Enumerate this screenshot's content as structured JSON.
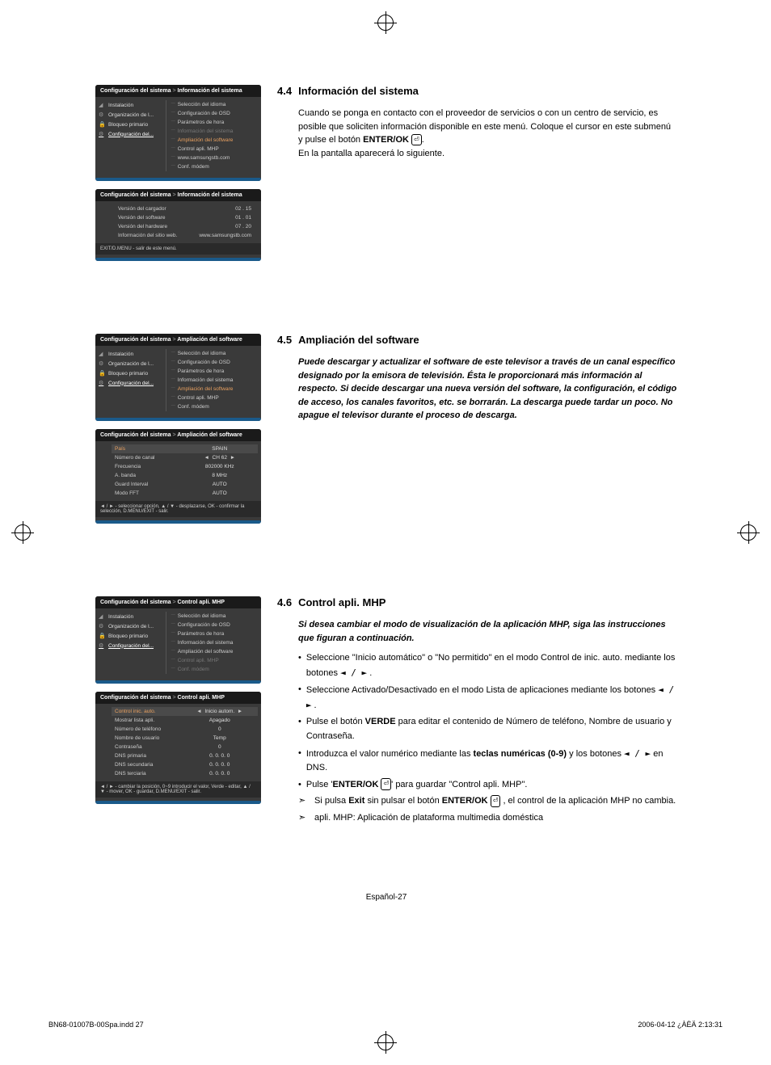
{
  "section_4_4": {
    "number": "4.4",
    "title": "Información del sistema",
    "body": "Cuando se ponga en contacto con el proveedor de servicios o con un centro de servicio, es posible que soliciten información disponible en este menú. Coloque el cursor en este submenú y pulse el botón ENTER/OK ⏎.",
    "body2": "En la pantalla aparecerá lo siguiente.",
    "menu1": {
      "breadcrumb_root": "Configuración del sistema",
      "breadcrumb_current": "Información del sistema",
      "left_items": [
        "Instalación",
        "Organización de l...",
        "Bloqueo primario",
        "Configuración del..."
      ],
      "right_items": [
        {
          "label": "Selección del idioma",
          "state": "normal"
        },
        {
          "label": "Configuración de OSD",
          "state": "normal"
        },
        {
          "label": "Parámetros de hora",
          "state": "normal"
        },
        {
          "label": "Información del sistema",
          "state": "dimmed"
        },
        {
          "label": "Ampliación del software",
          "state": "highlighted"
        },
        {
          "label": "Control apli. MHP",
          "state": "normal"
        },
        {
          "label": "www.samsungstb.com",
          "state": "normal"
        },
        {
          "label": "Conf. módem",
          "state": "normal"
        }
      ]
    },
    "menu2": {
      "breadcrumb_root": "Configuración del sistema",
      "breadcrumb_current": "Información del sistema",
      "rows": [
        {
          "label": "Versión del cargador",
          "value": "02 . 15"
        },
        {
          "label": "Versión del software",
          "value": "01 . 01"
        },
        {
          "label": "Versión del hardware",
          "value": "07 . 20"
        },
        {
          "label": "Información del sitio web.",
          "value": "www.samsungstb.com"
        }
      ],
      "footer": "EXIT/D.MENU - salir de este menú."
    }
  },
  "section_4_5": {
    "number": "4.5",
    "title": "Ampliación del software",
    "body": "Puede descargar y actualizar el software de este televisor a través de un canal específico designado por la emisora de televisión. Ésta le proporcionará más información al respecto. Si decide descargar una nueva versión del software, la configuración, el código de acceso, los canales favoritos, etc. se borrarán. La descarga puede tardar un poco. No apague el televisor durante el proceso de descarga.",
    "menu1": {
      "breadcrumb_root": "Configuración del sistema",
      "breadcrumb_current": "Ampliación del software",
      "left_items": [
        "Instalación",
        "Organización de l...",
        "Bloqueo primario",
        "Configuración del..."
      ],
      "right_items": [
        {
          "label": "Selección del idioma",
          "state": "normal"
        },
        {
          "label": "Configuración de OSD",
          "state": "normal"
        },
        {
          "label": "Parámetros de hora",
          "state": "normal"
        },
        {
          "label": "Información del sistema",
          "state": "normal"
        },
        {
          "label": "Ampliación del software",
          "state": "highlighted"
        },
        {
          "label": "Control apli. MHP",
          "state": "normal"
        },
        {
          "label": "Conf. módem",
          "state": "normal"
        }
      ]
    },
    "menu2": {
      "breadcrumb_root": "Configuración del sistema",
      "breadcrumb_current": "Ampliación del software",
      "rows": [
        {
          "label": "País",
          "value": "SPAIN",
          "highlighted": true
        },
        {
          "label": "Número de canal",
          "value": "CH  62",
          "arrows": true
        },
        {
          "label": "Frecuencia",
          "value": "802000 KHz"
        },
        {
          "label": "A. banda",
          "value": "8 MHz"
        },
        {
          "label": "Guard Interval",
          "value": "AUTO"
        },
        {
          "label": "Modo FFT",
          "value": "AUTO"
        }
      ],
      "footer": "◄ / ► - seleccionar opción, ▲ / ▼ - desplazarse, OK - confirmar la selección, D.MENU/EXIT - salir."
    }
  },
  "section_4_6": {
    "number": "4.6",
    "title": "Control apli. MHP",
    "intro": "Si desea cambiar el modo de visualización de la aplicación MHP, siga las instrucciones que figuran a continuación.",
    "bullets": [
      "Seleccione \"Inicio automático\" o \"No permitido\" en el modo Control de inic. auto. mediante los botones  ◄ / ► .",
      "Seleccione Activado/Desactivado en el modo Lista de aplicaciones mediante los botones  ◄ / ► .",
      "Pulse el botón VERDE para editar el contenido de Número de teléfono, Nombre de usuario y Contraseña.",
      "Introduzca el valor numérico mediante las teclas numéricas (0-9) y los botones ◄ / ►  en DNS.",
      "Pulse 'ENTER/OK ⏎' para guardar \"Control apli. MHP\"."
    ],
    "arrows": [
      "Si pulsa Exit sin pulsar el botón ENTER/OK ⏎ , el control de la aplicación MHP no cambia.",
      "apli. MHP: Aplicación de plataforma multimedia doméstica"
    ],
    "menu1": {
      "breadcrumb_root": "Configuración del sistema",
      "breadcrumb_current": "Control apli. MHP",
      "left_items": [
        "Instalación",
        "Organización de l...",
        "Bloqueo primario",
        "Configuración del..."
      ],
      "right_items": [
        {
          "label": "Selección del idioma",
          "state": "normal"
        },
        {
          "label": "Configuración de OSD",
          "state": "normal"
        },
        {
          "label": "Parámetros de hora",
          "state": "normal"
        },
        {
          "label": "Información del sistema",
          "state": "normal"
        },
        {
          "label": "Ampliación del software",
          "state": "normal"
        },
        {
          "label": "Control apli. MHP",
          "state": "dimmed"
        },
        {
          "label": "Conf. módem",
          "state": "dimmed"
        }
      ]
    },
    "menu2": {
      "breadcrumb_root": "Configuración del sistema",
      "breadcrumb_current": "Control apli. MHP",
      "rows": [
        {
          "label": "Control inic. auto.",
          "value": "Inicio autom.",
          "arrows": true,
          "highlighted": true
        },
        {
          "label": "Mostrar lista apli.",
          "value": "Apagado"
        },
        {
          "label": "Número de teléfono",
          "value": "0"
        },
        {
          "label": "Nombre de usuario",
          "value": "Temp"
        },
        {
          "label": "Contraseña",
          "value": "0"
        },
        {
          "label": "DNS primaria",
          "value": "0. 0. 0. 0"
        },
        {
          "label": "DNS secundaria",
          "value": "0. 0. 0. 0"
        },
        {
          "label": "DNS terciaria",
          "value": "0. 0. 0. 0"
        }
      ],
      "footer": "◄ / ► - cambiar la posición, 0~9 introducir el valor, Verde - editar, ▲ / ▼  - mover, OK - guardar, D.MENU/EXIT - salir."
    }
  },
  "page_number": "Español-27",
  "footer_left": "BN68-01007B-00Spa.indd   27",
  "footer_right": "2006-04-12   ¿ÀÈÄ 2:13:31"
}
